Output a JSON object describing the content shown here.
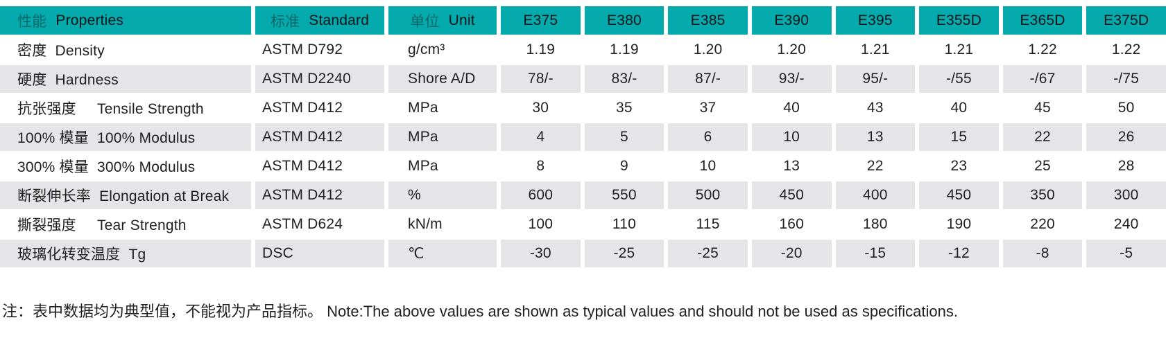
{
  "colors": {
    "header_bg": "#05abac",
    "alt_row_bg": "#e5e5e7",
    "text": "#1f1f1f"
  },
  "table": {
    "header": {
      "properties_cn": "性能",
      "properties_en": "Properties",
      "standard_cn": "标准",
      "standard_en": "Standard",
      "unit_cn": "单位",
      "unit_en": "Unit",
      "grades": [
        "E375",
        "E380",
        "E385",
        "E390",
        "E395",
        "E355D",
        "E365D",
        "E375D"
      ]
    },
    "rows": [
      {
        "property": "密度  Density",
        "standard": "ASTM D792",
        "unit": "g/cm³",
        "values": [
          "1.19",
          "1.19",
          "1.20",
          "1.20",
          "1.21",
          "1.21",
          "1.22",
          "1.22"
        ]
      },
      {
        "property": "硬度  Hardness",
        "standard": "ASTM D2240",
        "unit": "Shore A/D",
        "values": [
          "78/-",
          "83/-",
          "87/-",
          "93/-",
          "95/-",
          "-/55",
          "-/67",
          "-/75"
        ]
      },
      {
        "property": "抗张强度     Tensile Strength",
        "standard": "ASTM D412",
        "unit": "MPa",
        "values": [
          "30",
          "35",
          "37",
          "40",
          "43",
          "40",
          "45",
          "50"
        ]
      },
      {
        "property": "100% 模量  100% Modulus",
        "standard": "ASTM D412",
        "unit": "MPa",
        "values": [
          "4",
          "5",
          "6",
          "10",
          "13",
          "15",
          "22",
          "26"
        ]
      },
      {
        "property": "300% 模量  300% Modulus",
        "standard": "ASTM D412",
        "unit": "MPa",
        "values": [
          "8",
          "9",
          "10",
          "13",
          "22",
          "23",
          "25",
          "28"
        ]
      },
      {
        "property": "断裂伸长率  Elongation at Break",
        "standard": "ASTM D412",
        "unit": "%",
        "values": [
          "600",
          "550",
          "500",
          "450",
          "400",
          "450",
          "350",
          "300"
        ]
      },
      {
        "property": "撕裂强度     Tear Strength",
        "standard": "ASTM D624",
        "unit": "kN/m",
        "values": [
          "100",
          "110",
          "115",
          "160",
          "180",
          "190",
          "220",
          "240"
        ]
      },
      {
        "property": "玻璃化转变温度  Tg",
        "standard": "DSC",
        "unit": "℃",
        "values": [
          "-30",
          "-25",
          "-25",
          "-20",
          "-15",
          "-12",
          "-8",
          "-5"
        ]
      }
    ]
  },
  "note": "注：表中数据均为典型值，不能视为产品指标。 Note:The above values are shown as typical values and should not be used as specifications."
}
